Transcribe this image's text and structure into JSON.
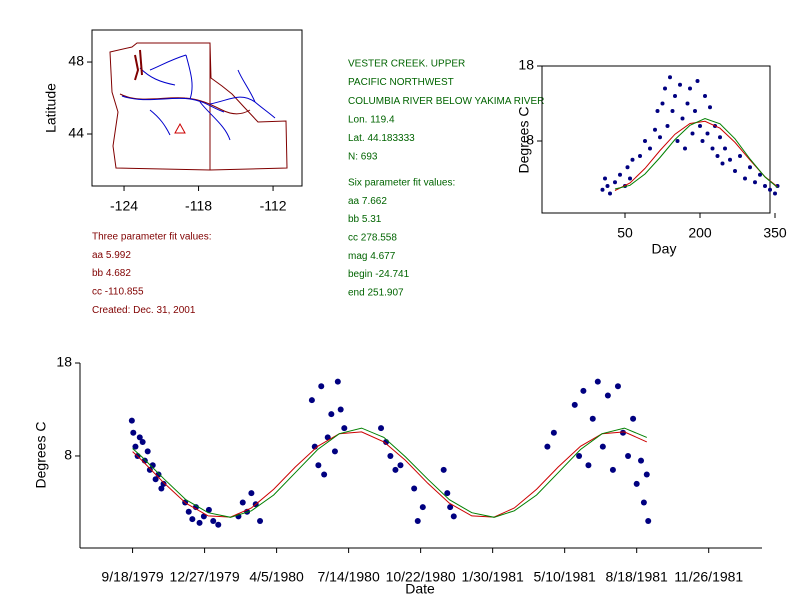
{
  "site_info": [
    "VESTER CREEK. UPPER",
    "PACIFIC NORTHWEST",
    "COLUMBIA RIVER BELOW YAKIMA RIVER",
    "Lon. 119.4",
    "Lat. 44.183333",
    "N: 693"
  ],
  "six_parameter": [
    "Six parameter fit values:",
    "aa 7.662",
    "bb 5.31",
    "cc 278.558",
    "mag 4.677",
    "begin -24.741",
    "end 251.907"
  ],
  "three_parameter": [
    "Three parameter fit values:",
    "aa 5.992",
    "bb 4.682",
    "cc -110.855",
    "Created:   Dec. 31, 2001"
  ],
  "chart_data": [
    {
      "type": "map",
      "ylabel": "Latitude",
      "xlim": [
        -126.58,
        -109.67
      ],
      "xticks": [
        -124,
        -118,
        -112
      ],
      "ylim": [
        41.11,
        49.78
      ],
      "yticks": [
        44,
        48
      ]
    },
    {
      "type": "scatter",
      "xlabel": "Day",
      "ylabel": "Degrees C",
      "xlim": [
        -116,
        340
      ],
      "xticks": [
        50,
        200,
        350
      ],
      "ylim": [
        -1.6,
        18
      ],
      "yticks": [
        8,
        18
      ],
      "series": [
        {
          "type": "scatter",
          "color": "#000080",
          "x": [
            5,
            10,
            15,
            20,
            30,
            40,
            50,
            55,
            60,
            65,
            80,
            90,
            100,
            110,
            115,
            120,
            125,
            130,
            135,
            140,
            145,
            150,
            155,
            160,
            165,
            170,
            175,
            180,
            185,
            190,
            195,
            200,
            205,
            210,
            215,
            220,
            225,
            230,
            235,
            240,
            245,
            250,
            260,
            270,
            280,
            290,
            300,
            310,
            320,
            330,
            340,
            350,
            355
          ],
          "values": [
            1.5,
            3,
            2,
            1,
            2.5,
            3.5,
            2,
            4.5,
            3,
            5.5,
            6,
            8,
            7,
            9.5,
            12,
            8.5,
            13,
            15,
            10,
            16.5,
            12,
            14,
            8,
            15.5,
            11,
            7,
            13,
            15,
            9,
            12,
            16,
            10,
            8,
            14,
            9,
            12.5,
            7,
            10,
            6,
            8.5,
            5,
            7,
            5.5,
            4,
            6,
            3,
            4.5,
            2.5,
            3.5,
            2,
            1.5,
            1,
            2
          ]
        },
        {
          "type": "line",
          "color": "#cc0000",
          "x": [
            30,
            60,
            90,
            120,
            150,
            180,
            210,
            240,
            270,
            300,
            330,
            355
          ],
          "values": [
            1.39,
            2.4,
            4.35,
            6.73,
            8.91,
            10.34,
            10.63,
            9.71,
            7.82,
            5.46,
            3.23,
            1.9
          ]
        },
        {
          "type": "line",
          "color": "#008000",
          "x": [
            30,
            60,
            90,
            120,
            150,
            180,
            210,
            240,
            270,
            300,
            330,
            355
          ],
          "values": [
            1.6,
            2.1,
            3.6,
            5.8,
            8.2,
            10.1,
            11.0,
            10.3,
            8.3,
            5.6,
            3.2,
            1.8
          ]
        }
      ]
    },
    {
      "type": "scatter",
      "xlabel": "Date",
      "ylabel": "Degrees C",
      "xlim": [
        "1979-07-07",
        "1982-02-08"
      ],
      "xticks": [
        {
          "value": "1979-09-18",
          "label": "9/18/1979"
        },
        {
          "value": "1979-12-27",
          "label": "12/27/1979"
        },
        {
          "value": "1980-04-05",
          "label": "4/5/1980"
        },
        {
          "value": "1980-07-14",
          "label": "7/14/1980"
        },
        {
          "value": "1980-10-22",
          "label": "10/22/1980"
        },
        {
          "value": "1981-01-30",
          "label": "1/30/1981"
        },
        {
          "value": "1981-05-10",
          "label": "5/10/1981"
        },
        {
          "value": "1981-08-18",
          "label": "8/18/1981"
        },
        {
          "value": "1981-11-26",
          "label": "11/26/1981"
        }
      ],
      "ylim": [
        -1.9,
        18
      ],
      "yticks": [
        8,
        18
      ],
      "series": [
        {
          "type": "scatter",
          "color": "#000080",
          "x": [
            "1979-09-17",
            "1979-09-19",
            "1979-09-22",
            "1979-09-25",
            "1979-09-28",
            "1979-10-02",
            "1979-10-05",
            "1979-10-09",
            "1979-10-12",
            "1979-10-16",
            "1979-10-20",
            "1979-10-24",
            "1979-10-28",
            "1979-10-31",
            "1979-11-30",
            "1979-12-05",
            "1979-12-10",
            "1979-12-15",
            "1979-12-20",
            "1979-12-26",
            "1980-01-02",
            "1980-01-08",
            "1980-01-15",
            "1980-02-12",
            "1980-02-18",
            "1980-02-24",
            "1980-03-01",
            "1980-03-07",
            "1980-03-13",
            "1980-05-24",
            "1980-05-28",
            "1980-06-02",
            "1980-06-06",
            "1980-06-10",
            "1980-06-15",
            "1980-06-20",
            "1980-06-25",
            "1980-06-29",
            "1980-07-03",
            "1980-07-08",
            "1980-08-28",
            "1980-09-04",
            "1980-09-10",
            "1980-09-17",
            "1980-09-24",
            "1980-10-13",
            "1980-10-18",
            "1980-10-25",
            "1980-11-23",
            "1980-11-28",
            "1980-12-02",
            "1980-12-07",
            "1981-04-16",
            "1981-04-25",
            "1981-05-24",
            "1981-05-30",
            "1981-06-05",
            "1981-06-12",
            "1981-06-18",
            "1981-06-25",
            "1981-07-02",
            "1981-07-09",
            "1981-07-16",
            "1981-07-23",
            "1981-07-30",
            "1981-08-06",
            "1981-08-13",
            "1981-08-18",
            "1981-08-24",
            "1981-08-28",
            "1981-09-01",
            "1981-09-03"
          ],
          "values": [
            11.8,
            10.5,
            9,
            8,
            10,
            9.5,
            7.5,
            8.5,
            6.5,
            7,
            5.5,
            6,
            4.5,
            5,
            3,
            2,
            1.2,
            2.5,
            0.8,
            1.5,
            2.2,
            1,
            0.6,
            1.5,
            3,
            2,
            4,
            2.8,
            1,
            14,
            9,
            7,
            15.5,
            6,
            10,
            12.5,
            8.5,
            16,
            13,
            11,
            11,
            9.5,
            8,
            6.5,
            7,
            4.5,
            1,
            2.5,
            6.5,
            4,
            2.5,
            1.5,
            9,
            10.5,
            13.5,
            8,
            15,
            7,
            12,
            16,
            9,
            14.5,
            6.5,
            15.5,
            10.5,
            8,
            12,
            5,
            7.5,
            3,
            6,
            1
          ]
        },
        {
          "type": "line",
          "color": "#cc0000",
          "x": [
            "1979-09-18",
            "1979-10-01",
            "1979-11-01",
            "1979-12-01",
            "1980-01-01",
            "1980-02-01",
            "1980-03-01",
            "1980-04-01",
            "1980-05-01",
            "1980-06-01",
            "1980-07-01",
            "1980-08-01",
            "1980-09-01",
            "1980-10-01",
            "1980-11-01",
            "1980-12-01",
            "1981-01-01",
            "1981-02-01",
            "1981-03-01",
            "1981-04-01",
            "1981-05-01",
            "1981-06-01",
            "1981-07-01",
            "1981-08-01",
            "1981-09-01"
          ],
          "values": [
            8.47,
            7.52,
            5.06,
            2.92,
            1.55,
            1.42,
            2.4,
            4.42,
            6.81,
            9.04,
            10.4,
            10.59,
            9.51,
            7.52,
            5.06,
            2.92,
            1.55,
            1.42,
            2.4,
            4.42,
            6.81,
            9.04,
            10.4,
            10.59,
            9.51
          ]
        },
        {
          "type": "line",
          "color": "#008000",
          "x": [
            "1979-09-18",
            "1979-10-01",
            "1979-11-01",
            "1979-12-01",
            "1980-01-01",
            "1980-02-01",
            "1980-03-01",
            "1980-04-01",
            "1980-05-01",
            "1980-06-01",
            "1980-07-01",
            "1980-08-01",
            "1980-09-01",
            "1980-10-01",
            "1980-11-01",
            "1980-12-01",
            "1981-01-01",
            "1981-02-01",
            "1981-03-01",
            "1981-04-01",
            "1981-05-01",
            "1981-06-01",
            "1981-07-01",
            "1981-08-01",
            "1981-09-01"
          ],
          "values": [
            8.8,
            7.9,
            5.5,
            3.3,
            1.9,
            1.4,
            2.1,
            3.8,
            6.2,
            8.7,
            10.4,
            11.0,
            10.0,
            7.9,
            5.5,
            3.3,
            1.9,
            1.4,
            2.1,
            3.8,
            6.2,
            8.7,
            10.4,
            11.0,
            10.0
          ]
        }
      ]
    }
  ]
}
